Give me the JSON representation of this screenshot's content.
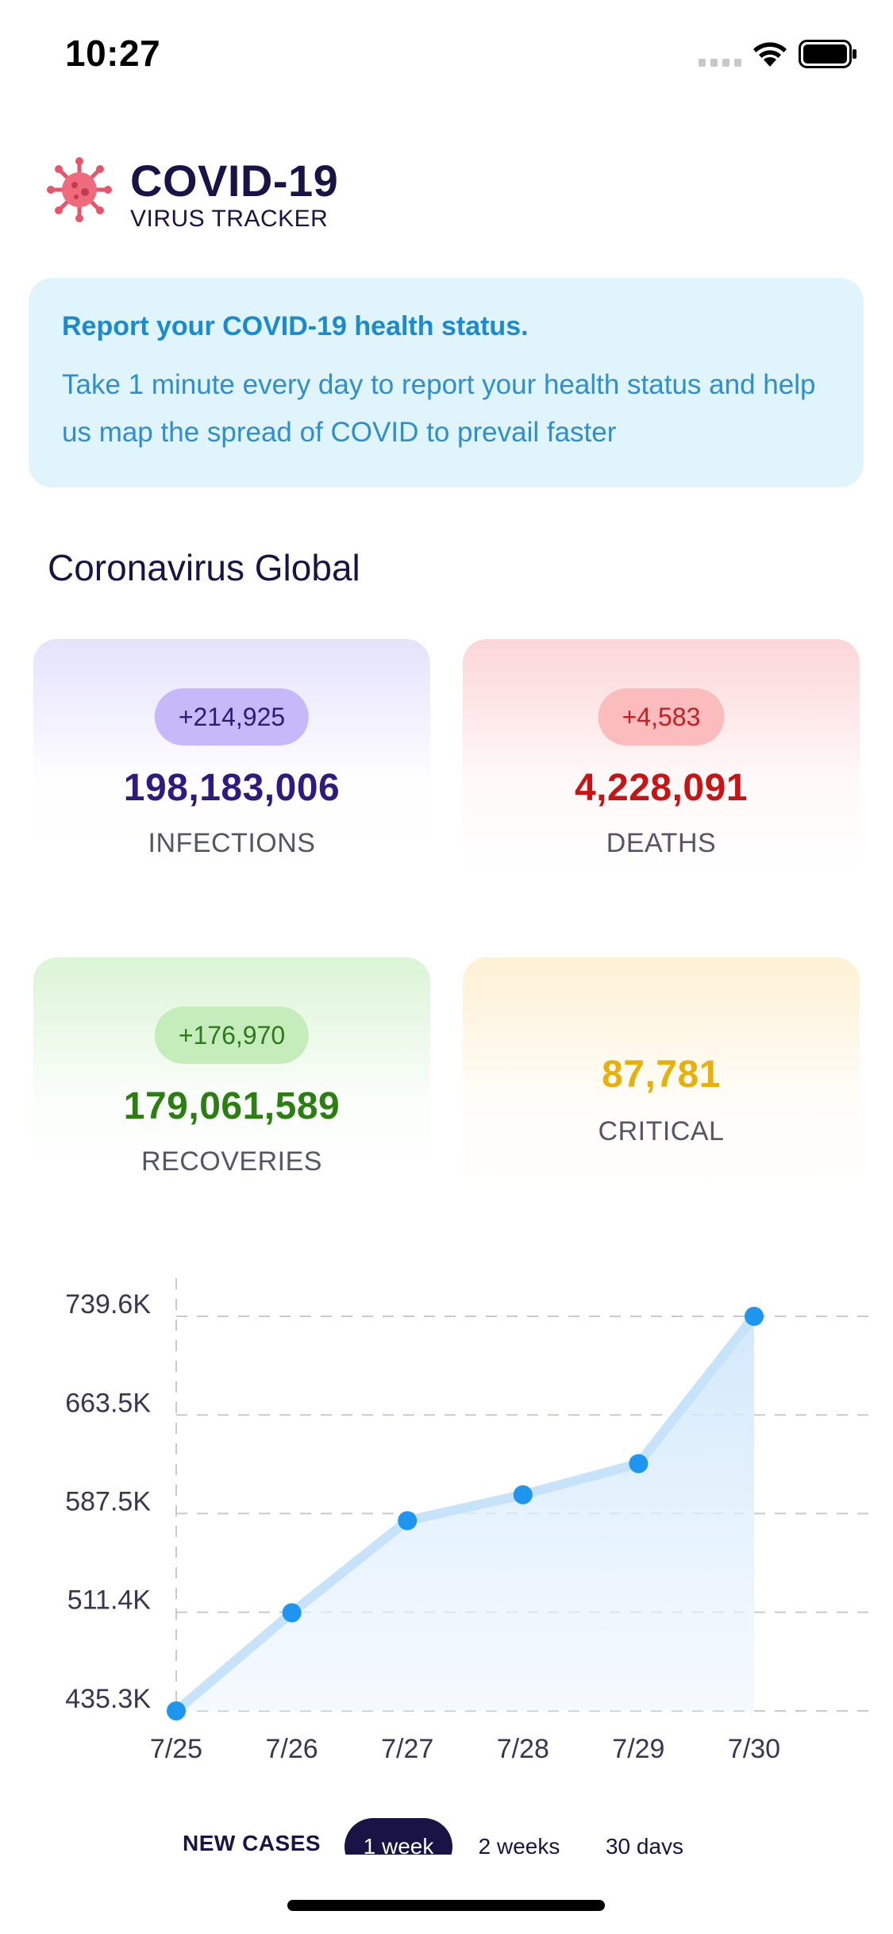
{
  "status_bar": {
    "time": "10:27"
  },
  "header": {
    "title": "COVID-19",
    "subtitle": "VIRUS TRACKER"
  },
  "report": {
    "title": "Report your COVID-19 health status.",
    "body": "Take 1 minute every day to report your health status and help us map the spread of COVID to prevail faster"
  },
  "section_title": "Coronavirus Global",
  "stats": {
    "infections": {
      "delta": "+214,925",
      "value": "198,183,006",
      "label": "INFECTIONS"
    },
    "deaths": {
      "delta": "+4,583",
      "value": "4,228,091",
      "label": "DEATHS"
    },
    "recoveries": {
      "delta": "+176,970",
      "value": "179,061,589",
      "label": "RECOVERIES"
    },
    "critical": {
      "value": "87,781",
      "label": "CRITICAL"
    }
  },
  "colors": {
    "primary": "#1a1446",
    "accent": "#1e96f0",
    "report_bg": "#e0f4fc",
    "infections": "#2e1a80",
    "deaths": "#c81414",
    "recoveries": "#2a7f10",
    "critical": "#eab00a"
  },
  "chart_data": {
    "type": "area",
    "x": [
      "7/25",
      "7/26",
      "7/27",
      "7/28",
      "7/29",
      "7/30"
    ],
    "y": [
      435.3,
      511.0,
      582.0,
      602.0,
      626.0,
      739.6
    ],
    "y_units": "K",
    "yticks": [
      "435.3K",
      "511.4K",
      "587.5K",
      "663.5K",
      "739.6K"
    ],
    "ytick_values": [
      435.3,
      511.4,
      587.5,
      663.5,
      739.6
    ],
    "ylim": [
      435.3,
      739.6
    ],
    "grid": true,
    "title": "",
    "xlabel": "",
    "ylabel": ""
  },
  "range_selector": {
    "label": "NEW CASES",
    "options": [
      "1 week",
      "2 weeks",
      "30 days"
    ],
    "selected": "1 week"
  }
}
